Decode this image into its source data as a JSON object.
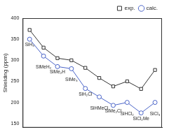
{
  "chart_data": {
    "type": "line",
    "y_label": "Shielding (ppm)",
    "categories": [
      "SiH₃",
      "SiMeH₂",
      "SiMe₂H",
      "SiMe₃",
      "SiH₂Cl",
      "SiHMeCl",
      "SiMe₂Cl",
      "SiHCl₂",
      "SiCl₂Me",
      "SiCl₃"
    ],
    "series": [
      {
        "name": "exp.",
        "color": "#333333",
        "marker": "square",
        "line_style": "solid",
        "values": [
          372,
          330,
          305,
          300,
          282,
          258,
          238,
          250,
          232,
          277
        ]
      },
      {
        "name": "calc.",
        "color": "#4a64c8",
        "marker": "circle",
        "line_style": "solid",
        "values": [
          350,
          310,
          285,
          280,
          233,
          213,
          193,
          200,
          175,
          200
        ]
      }
    ],
    "ylim": [
      140,
      400
    ],
    "yticks": [
      150,
      200,
      250,
      300,
      350,
      400
    ],
    "grid": false,
    "legend": "upper right",
    "tick_labels": "y"
  }
}
